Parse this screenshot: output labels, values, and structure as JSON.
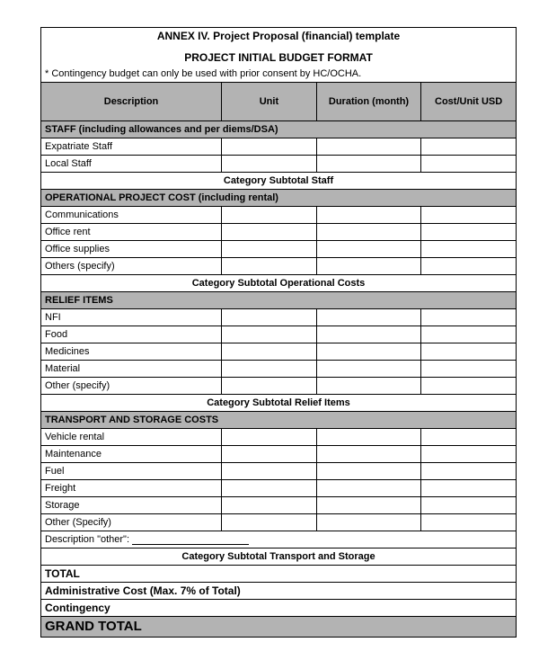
{
  "colors": {
    "header_bg": "#b3b3b3",
    "border": "#000000",
    "page_bg": "#ffffff",
    "text": "#000000"
  },
  "title": "ANNEX IV. Project Proposal (financial) template",
  "subtitle": "PROJECT INITIAL BUDGET FORMAT",
  "note": "* Contingency budget can only be used with prior consent by HC/OCHA.",
  "columns": [
    "Description",
    "Unit",
    "Duration (month)",
    "Cost/Unit USD"
  ],
  "sections": [
    {
      "header": "STAFF (including allowances and per diems/DSA)",
      "rows": [
        "Expatriate Staff",
        "Local Staff"
      ],
      "subtotal": "Category Subtotal Staff"
    },
    {
      "header": "OPERATIONAL PROJECT COST (including rental)",
      "rows": [
        "Communications",
        "Office rent",
        "Office supplies",
        "Others (specify)"
      ],
      "subtotal": "Category Subtotal Operational Costs"
    },
    {
      "header": "RELIEF ITEMS",
      "rows": [
        "NFI",
        "Food",
        "Medicines",
        "Material",
        "Other (specify)"
      ],
      "subtotal": "Category Subtotal Relief Items"
    },
    {
      "header": "TRANSPORT AND STORAGE COSTS",
      "rows": [
        "Vehicle rental",
        "Maintenance",
        "Fuel",
        "Freight",
        "Storage",
        "Other (Specify)"
      ],
      "extra": "Description \"other\": ",
      "subtotal": "Category Subtotal Transport and Storage"
    }
  ],
  "totals": {
    "total": "TOTAL",
    "admin": "Administrative Cost (Max. 7% of Total)",
    "contingency": "Contingency",
    "grand": "GRAND TOTAL"
  }
}
